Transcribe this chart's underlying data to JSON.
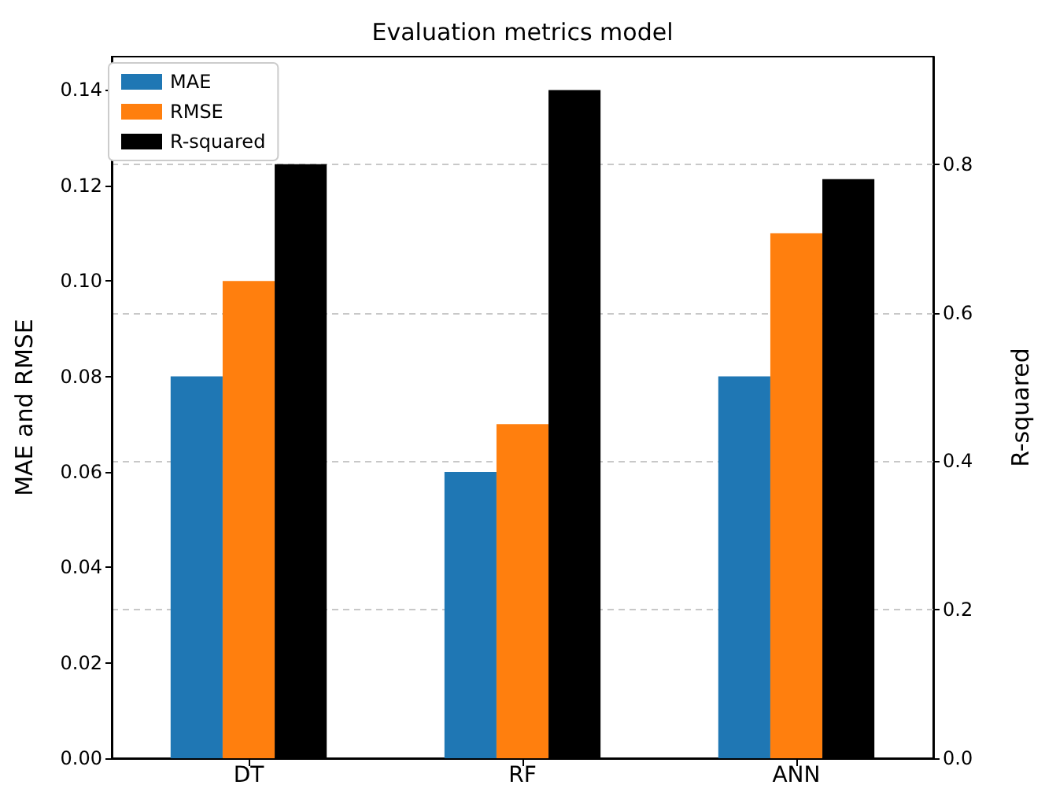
{
  "chart_data": {
    "type": "bar",
    "title": "Evaluation metrics model",
    "ylabel": "MAE and RMSE",
    "y2label": "R-squared",
    "categories": [
      "DT",
      "RF",
      "ANN"
    ],
    "series": [
      {
        "name": "MAE",
        "color": "#1f77b4",
        "values": [
          0.08,
          0.06,
          0.08
        ]
      },
      {
        "name": "RMSE",
        "color": "#ff7f0e",
        "values": [
          0.1,
          0.07,
          0.11
        ]
      },
      {
        "name": "R-squared",
        "color": "#000000",
        "values": [
          0.8,
          0.9,
          0.78
        ],
        "axis": "y2"
      }
    ],
    "ylim": [
      0,
      0.147
    ],
    "yticks": [
      {
        "value": 0,
        "label": "0.00"
      },
      {
        "value": 0.02,
        "label": "0.02"
      },
      {
        "value": 0.04,
        "label": "0.04"
      },
      {
        "value": 0.06,
        "label": "0.06"
      },
      {
        "value": 0.08,
        "label": "0.08"
      },
      {
        "value": 0.1,
        "label": "0.10"
      },
      {
        "value": 0.12,
        "label": "0.12"
      },
      {
        "value": 0.14,
        "label": "0.14"
      }
    ],
    "y2lim": [
      0,
      0.945
    ],
    "y2ticks": [
      {
        "value": 0,
        "label": "0.0"
      },
      0.2,
      0.4,
      0.6,
      0.8
    ],
    "grid": "y",
    "legend": "top left"
  }
}
